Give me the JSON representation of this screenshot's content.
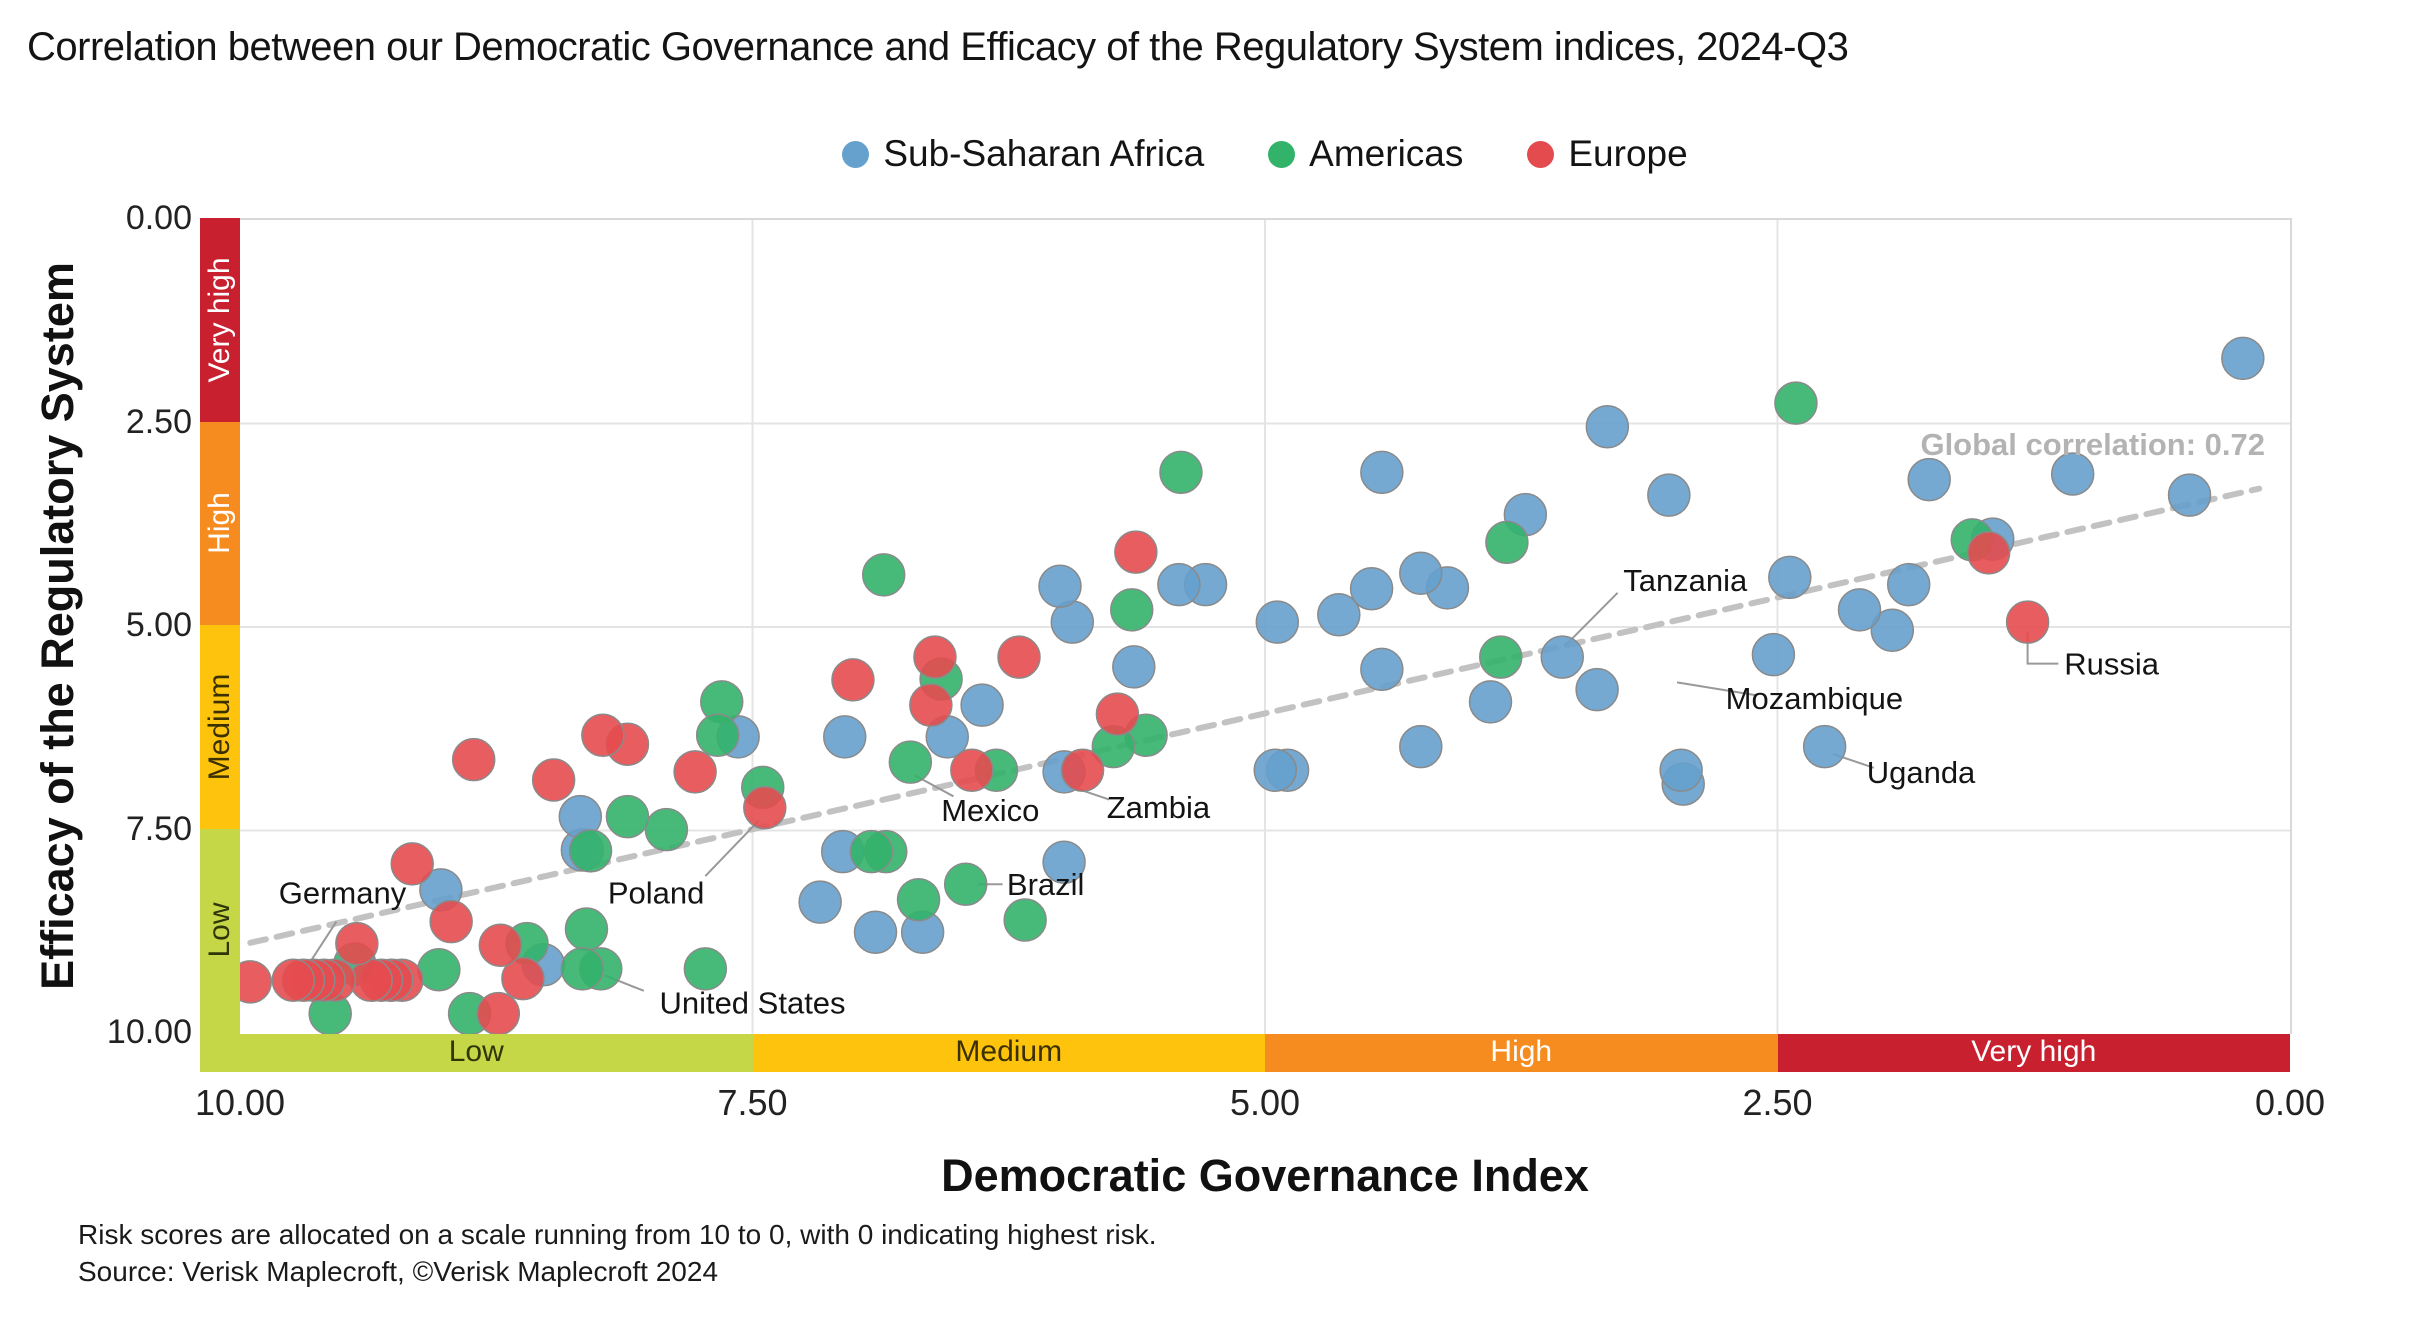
{
  "page": {
    "title": "Correlation between our Democratic Governance and Efficacy of the Regulatory System indices, 2024-Q3"
  },
  "legend": [
    {
      "label": "Sub-Saharan Africa",
      "color": "#66a0cc"
    },
    {
      "label": "Americas",
      "color": "#33b36a"
    },
    {
      "label": "Europe",
      "color": "#e44b4f"
    }
  ],
  "footer": {
    "line1": "Risk scores are allocated on a scale running from 10 to 0, with 0 indicating highest risk.",
    "line2": "Source: Verisk Maplecroft, ©Verisk Maplecroft 2024"
  },
  "chart_data": {
    "type": "scatter",
    "title": "Correlation between our Democratic Governance and Efficacy of the Regulatory System indices, 2024-Q3",
    "xlabel": "Democratic Governance Index",
    "ylabel": "Efficacy of the Regulatory System",
    "xlim": [
      10,
      0
    ],
    "ylim": [
      0,
      10
    ],
    "axes_note": "both axes run from 10 (low risk) to 0 (high risk); x is reversed left-to-right, y runs 0 at top to 10 at bottom",
    "x_ticks": [
      {
        "value": 10,
        "label": "10.00"
      },
      {
        "value": 7.5,
        "label": "7.50"
      },
      {
        "value": 5,
        "label": "5.00"
      },
      {
        "value": 2.5,
        "label": "2.50"
      },
      {
        "value": 0,
        "label": "0.00"
      }
    ],
    "y_ticks": [
      {
        "value": 0,
        "label": "0.00"
      },
      {
        "value": 2.5,
        "label": "2.50"
      },
      {
        "value": 5,
        "label": "5.00"
      },
      {
        "value": 7.5,
        "label": "7.50"
      },
      {
        "value": 10,
        "label": "10.00"
      }
    ],
    "x_gridlines": [
      7.5,
      5,
      2.5
    ],
    "y_gridlines": [
      2.5,
      5,
      7.5
    ],
    "grid_color": "#e4e4e4",
    "risk_bands": {
      "y_axis": [
        {
          "label": "Very high",
          "color": "#c8202f",
          "text_color": "#ffffff",
          "from": 0,
          "to": 2.5
        },
        {
          "label": "High",
          "color": "#f68b1f",
          "text_color": "#ffffff",
          "from": 2.5,
          "to": 5
        },
        {
          "label": "Medium",
          "color": "#fec40d",
          "text_color": "#3a3000",
          "from": 5,
          "to": 7.5
        },
        {
          "label": "Low",
          "color": "#c5d647",
          "text_color": "#2f3608",
          "from": 7.5,
          "to": 10
        }
      ],
      "x_axis": [
        {
          "label": "Low",
          "color": "#c5d647",
          "text_color": "#2f3608",
          "from": 10,
          "to": 7.5
        },
        {
          "label": "Medium",
          "color": "#fec40d",
          "text_color": "#3a3000",
          "from": 7.5,
          "to": 5
        },
        {
          "label": "High",
          "color": "#f68b1f",
          "text_color": "#ffffff",
          "from": 5,
          "to": 2.5
        },
        {
          "label": "Very high",
          "color": "#c8202f",
          "text_color": "#ffffff",
          "from": 2.5,
          "to": 0
        }
      ]
    },
    "trend": {
      "label": "Global correlation: 0.72",
      "from": [
        9.95,
        8.88
      ],
      "to": [
        0.15,
        3.3
      ],
      "color": "#c2c2c2"
    },
    "point_style": {
      "radius": 21,
      "stroke": "#8a8a8a",
      "fill_opacity": 0.9
    },
    "series": [
      {
        "name": "Sub-Saharan Africa",
        "color": "#66a0cc",
        "points": [
          [
            0.23,
            1.7
          ],
          [
            0.49,
            3.38
          ],
          [
            1.06,
            3.12
          ],
          [
            1.45,
            3.92
          ],
          [
            1.76,
            3.19
          ],
          [
            1.86,
            4.48
          ],
          [
            1.94,
            5.04
          ],
          [
            2.1,
            4.79
          ],
          [
            2.27,
            6.47
          ],
          [
            2.44,
            4.39
          ],
          [
            2.52,
            5.34
          ],
          [
            2.96,
            6.93
          ],
          [
            2.97,
            6.76
          ],
          [
            3.03,
            3.38
          ],
          [
            3.33,
            2.54
          ],
          [
            3.38,
            5.77
          ],
          [
            3.55,
            5.37
          ],
          [
            3.73,
            3.62
          ],
          [
            3.9,
            5.92
          ],
          [
            4.11,
            4.52
          ],
          [
            4.24,
            4.34
          ],
          [
            4.24,
            6.47
          ],
          [
            4.43,
            3.1
          ],
          [
            4.43,
            5.52
          ],
          [
            4.48,
            4.53
          ],
          [
            4.64,
            4.85
          ],
          [
            4.89,
            6.76
          ],
          [
            4.94,
            4.94
          ],
          [
            4.95,
            6.76
          ],
          [
            5.29,
            4.48
          ],
          [
            5.42,
            4.48
          ],
          [
            5.64,
            5.49
          ],
          [
            5.94,
            4.94
          ],
          [
            5.98,
            6.78
          ],
          [
            5.98,
            7.89
          ],
          [
            6.0,
            4.5
          ],
          [
            6.38,
            5.96
          ],
          [
            6.55,
            6.35
          ],
          [
            6.67,
            8.75
          ],
          [
            6.9,
            8.75
          ],
          [
            7.05,
            6.35
          ],
          [
            7.06,
            7.76
          ],
          [
            7.17,
            8.38
          ],
          [
            7.57,
            6.35
          ],
          [
            8.33,
            7.74
          ],
          [
            8.34,
            7.33
          ],
          [
            8.52,
            9.15
          ],
          [
            9.02,
            8.23
          ]
        ]
      },
      {
        "name": "Americas",
        "color": "#33b36a",
        "points": [
          [
            1.55,
            3.93
          ],
          [
            2.41,
            2.25
          ],
          [
            3.82,
            3.96
          ],
          [
            3.85,
            5.37
          ],
          [
            5.41,
            3.1
          ],
          [
            5.58,
            6.33
          ],
          [
            5.65,
            4.79
          ],
          [
            5.74,
            6.47
          ],
          [
            6.17,
            8.6
          ],
          [
            6.31,
            6.76
          ],
          [
            6.46,
            8.16
          ],
          [
            6.58,
            5.64
          ],
          [
            6.69,
            8.35
          ],
          [
            6.73,
            6.66
          ],
          [
            6.85,
            7.76
          ],
          [
            6.86,
            4.36
          ],
          [
            6.92,
            7.76
          ],
          [
            7.45,
            6.97
          ],
          [
            7.65,
            5.92
          ],
          [
            7.67,
            6.33
          ],
          [
            7.73,
            9.2
          ],
          [
            7.92,
            7.49
          ],
          [
            8.11,
            7.33
          ],
          [
            8.24,
            9.2
          ],
          [
            8.29,
            7.75
          ],
          [
            8.31,
            8.71
          ],
          [
            8.33,
            9.2
          ],
          [
            8.6,
            8.89
          ],
          [
            8.88,
            9.75
          ],
          [
            9.03,
            9.21
          ],
          [
            9.44,
            9.14
          ],
          [
            9.56,
            9.75
          ]
        ]
      },
      {
        "name": "Europe",
        "color": "#e44b4f",
        "points": [
          [
            1.28,
            4.94
          ],
          [
            1.47,
            4.09
          ],
          [
            5.63,
            4.08
          ],
          [
            5.72,
            6.07
          ],
          [
            5.89,
            6.76
          ],
          [
            6.2,
            5.37
          ],
          [
            6.43,
            6.76
          ],
          [
            6.61,
            5.37
          ],
          [
            6.63,
            5.96
          ],
          [
            7.01,
            5.65
          ],
          [
            7.44,
            7.22
          ],
          [
            7.78,
            6.78
          ],
          [
            8.11,
            6.44
          ],
          [
            8.23,
            6.33
          ],
          [
            8.47,
            6.88
          ],
          [
            8.62,
            9.32
          ],
          [
            8.73,
            8.91
          ],
          [
            8.74,
            9.75
          ],
          [
            8.86,
            6.63
          ],
          [
            8.97,
            8.62
          ],
          [
            9.16,
            7.91
          ],
          [
            9.21,
            9.34
          ],
          [
            9.26,
            9.34
          ],
          [
            9.31,
            9.34
          ],
          [
            9.36,
            9.34
          ],
          [
            9.43,
            8.89
          ],
          [
            9.54,
            9.34
          ],
          [
            9.59,
            9.34
          ],
          [
            9.64,
            9.34
          ],
          [
            9.69,
            9.34
          ],
          [
            9.74,
            9.34
          ],
          [
            9.95,
            9.36
          ]
        ]
      }
    ],
    "annotations": [
      {
        "name": "Germany",
        "label_pos": [
          9.5,
          8.26
        ],
        "pointer": [
          [
            9.7,
            9.28
          ],
          [
            9.53,
            8.62
          ]
        ]
      },
      {
        "name": "Poland",
        "label_pos": [
          7.97,
          8.26
        ],
        "pointer": [
          [
            7.47,
            7.38
          ],
          [
            7.73,
            8.06
          ]
        ]
      },
      {
        "name": "United States",
        "label_pos": [
          7.5,
          9.61
        ],
        "pointer": [
          [
            8.22,
            9.28
          ],
          [
            8.03,
            9.47
          ]
        ]
      },
      {
        "name": "Mexico",
        "label_pos": [
          6.34,
          7.25
        ],
        "pointer": [
          [
            6.71,
            6.82
          ],
          [
            6.52,
            7.08
          ]
        ]
      },
      {
        "name": "Zambia",
        "label_pos": [
          5.52,
          7.21
        ],
        "pointer": [
          [
            5.96,
            6.95
          ],
          [
            5.76,
            7.12
          ]
        ]
      },
      {
        "name": "Brazil",
        "label_pos": [
          6.07,
          8.16
        ],
        "pointer": [
          [
            6.4,
            8.16
          ],
          [
            6.28,
            8.16
          ]
        ]
      },
      {
        "name": "Tanzania",
        "label_pos": [
          2.95,
          4.42
        ],
        "pointer": [
          [
            3.54,
            5.24
          ],
          [
            3.28,
            4.58
          ]
        ]
      },
      {
        "name": "Mozambique",
        "label_pos": [
          2.32,
          5.87
        ],
        "pointer": [
          [
            2.99,
            5.68
          ],
          [
            2.6,
            5.84
          ]
        ]
      },
      {
        "name": "Uganda",
        "label_pos": [
          1.8,
          6.78
        ],
        "pointer": [
          [
            2.23,
            6.56
          ],
          [
            2.03,
            6.73
          ]
        ]
      },
      {
        "name": "Russia",
        "label_pos": [
          0.87,
          5.45
        ],
        "pointer": [
          [
            1.28,
            5.06
          ],
          [
            1.28,
            5.45
          ],
          [
            1.13,
            5.45
          ]
        ]
      }
    ]
  }
}
